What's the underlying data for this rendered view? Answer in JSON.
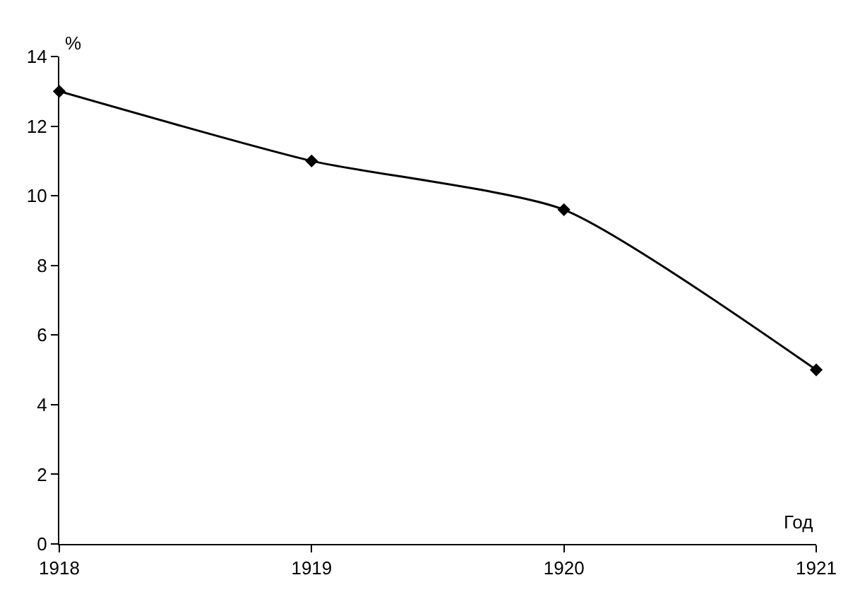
{
  "chart_data": {
    "type": "line",
    "xlabel": "Год",
    "ylabel": "%",
    "x": [
      1918,
      1919,
      1920,
      1921
    ],
    "series": [
      {
        "color": "#000000",
        "values": [
          13.0,
          11.0,
          9.6,
          5.0
        ]
      }
    ],
    "xlim": [
      1918,
      1921
    ],
    "xticks": [
      1918,
      1919,
      1920,
      1921
    ],
    "ylim": [
      0,
      14
    ],
    "yticks": [
      0,
      2,
      4,
      6,
      8,
      10,
      12,
      14
    ],
    "legend": false,
    "marker": "diamond",
    "line_style": "solid"
  }
}
